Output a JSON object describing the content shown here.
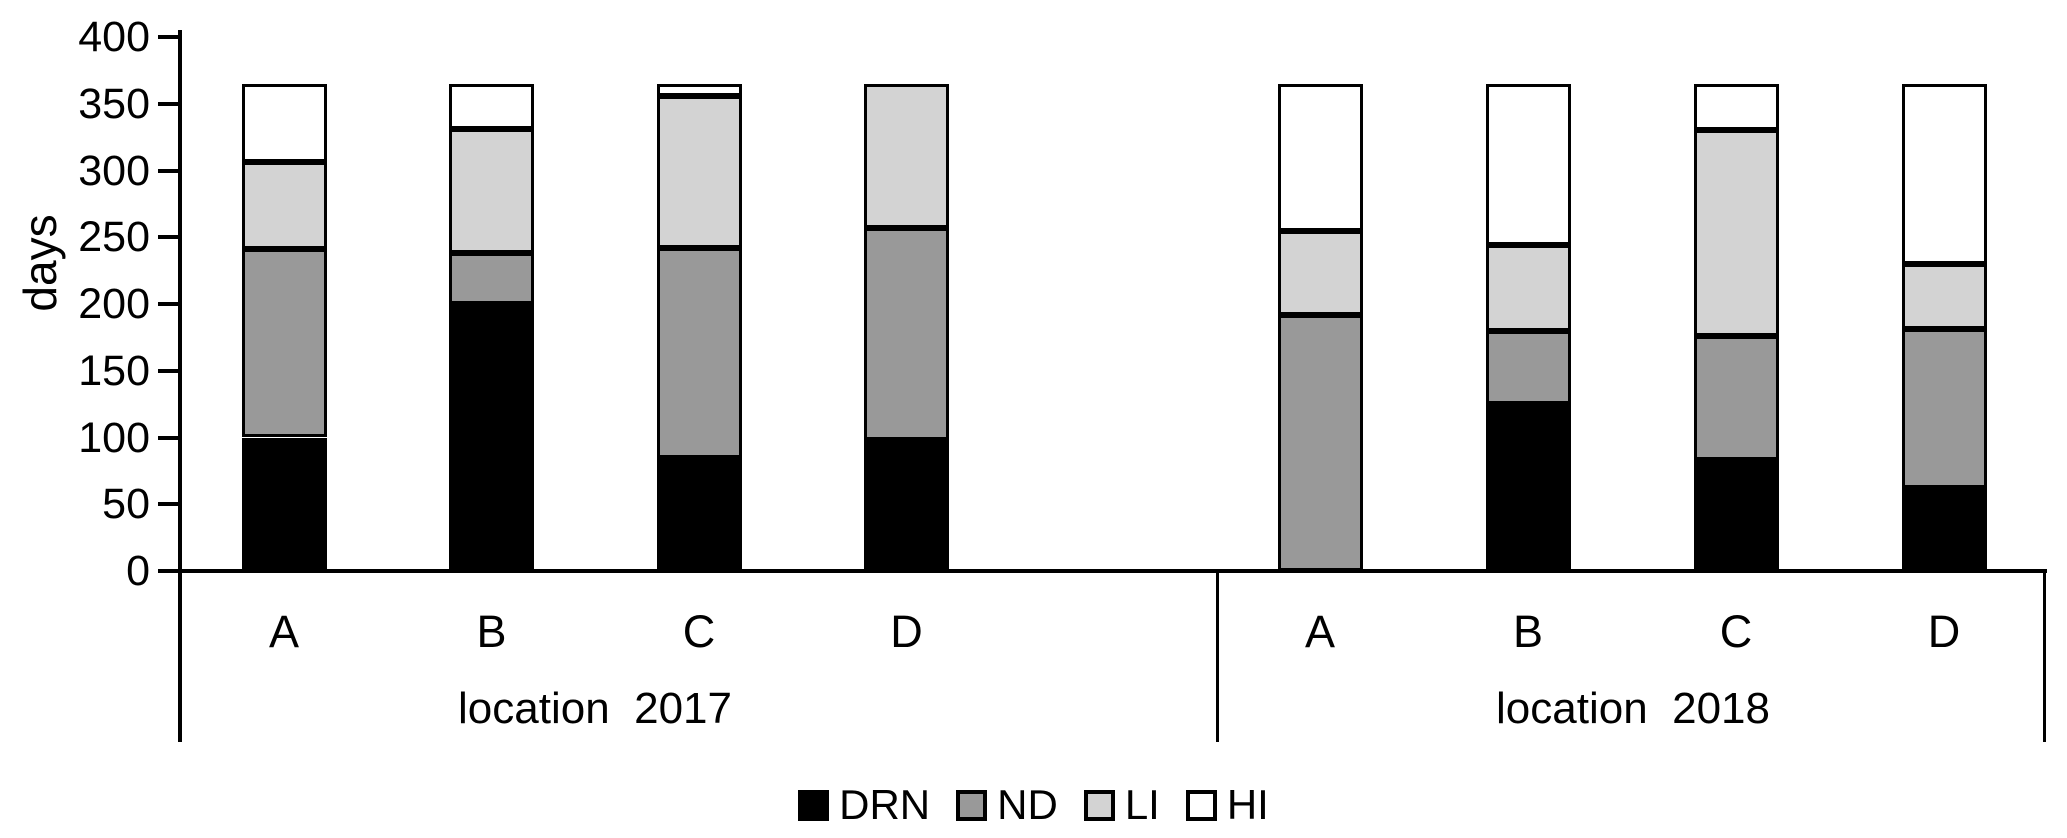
{
  "chart_data": {
    "type": "bar",
    "stacked": true,
    "title": "",
    "xlabel": "",
    "ylabel": "days",
    "ylim": [
      0,
      400
    ],
    "yticks": [
      0,
      50,
      100,
      150,
      200,
      250,
      300,
      350,
      400
    ],
    "grid": false,
    "legend_position": "bottom",
    "bar_total_days": 365,
    "groups": [
      {
        "label": "location  2017",
        "categories": [
          "A",
          "B",
          "C",
          "D"
        ]
      },
      {
        "label": "location  2018",
        "categories": [
          "A",
          "B",
          "C",
          "D"
        ]
      }
    ],
    "series": [
      {
        "name": "DRN",
        "color": "#000000",
        "values": [
          [
            100,
            200,
            85,
            98
          ],
          [
            0,
            125,
            83,
            62
          ]
        ]
      },
      {
        "name": "ND",
        "color": "#999999",
        "values": [
          [
            141,
            38,
            157,
            159
          ],
          [
            192,
            55,
            93,
            119
          ]
        ]
      },
      {
        "name": "LI",
        "color": "#d3d3d3",
        "values": [
          [
            65,
            93,
            114,
            108
          ],
          [
            63,
            64,
            154,
            49
          ]
        ]
      },
      {
        "name": "HI",
        "color": "#ffffff",
        "values": [
          [
            59,
            34,
            9,
            0
          ],
          [
            110,
            121,
            35,
            135
          ]
        ]
      }
    ]
  }
}
